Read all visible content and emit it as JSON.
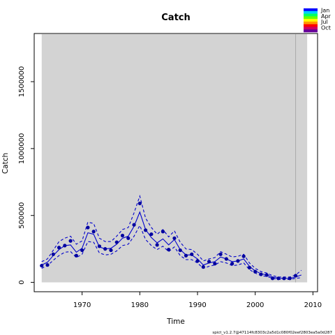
{
  "chart_data": {
    "type": "line",
    "title": "Catch",
    "xlabel": "Time",
    "ylabel": "Catch",
    "xlim": [
      1961.7,
      2010.8
    ],
    "ylim": [
      -70000,
      1860000
    ],
    "x_ticks": [
      1970,
      1980,
      1990,
      2000,
      2010
    ],
    "y_ticks": [
      0,
      500000,
      1000000,
      1500000
    ],
    "y_tick_labels": [
      "0",
      "500000",
      "1000000",
      "1500000"
    ],
    "shaded_region": {
      "x": [
        1963.0,
        2009.0
      ],
      "color": "#d3d3d3"
    },
    "reference_line_x": 2007,
    "legend": {
      "placement": "top-right",
      "labels": [
        "Jan",
        "Apr",
        "Jul",
        "Oct"
      ]
    },
    "observed": {
      "x": [
        1963,
        1964,
        1965,
        1966,
        1967,
        1968,
        1969,
        1970,
        1971,
        1972,
        1973,
        1974,
        1975,
        1976,
        1977,
        1978,
        1979,
        1980,
        1981,
        1982,
        1983,
        1984,
        1985,
        1986,
        1987,
        1988,
        1989,
        1990,
        1991,
        1992,
        1993,
        1994,
        1995,
        1996,
        1997,
        1998,
        1999,
        2000,
        2001,
        2002,
        2003,
        2004,
        2005,
        2006,
        2007
      ],
      "y": [
        125000,
        130000,
        210000,
        260000,
        275000,
        310000,
        200000,
        240000,
        410000,
        380000,
        270000,
        250000,
        240000,
        300000,
        350000,
        330000,
        430000,
        590000,
        390000,
        360000,
        280000,
        380000,
        245000,
        330000,
        240000,
        200000,
        210000,
        160000,
        115000,
        155000,
        140000,
        210000,
        175000,
        140000,
        160000,
        195000,
        110000,
        80000,
        60000,
        55000,
        30000,
        30000,
        30000,
        30000,
        50000
      ]
    },
    "series": [
      {
        "x": [
          1963,
          1964,
          1965,
          1966,
          1967,
          1968,
          1969,
          1970,
          1971,
          1972,
          1973,
          1974,
          1975,
          1976,
          1977,
          1978,
          1979,
          1980,
          1981,
          1982,
          1983,
          1984,
          1985,
          1986,
          1987,
          1988,
          1989,
          1990,
          1991,
          1992,
          1993,
          1994,
          1995,
          1996,
          1997,
          1998,
          1999,
          2000,
          2001,
          2002,
          2003,
          2004,
          2005,
          2006,
          2007,
          2008
        ],
        "y": [
          130000,
          150000,
          200000,
          245000,
          275000,
          280000,
          225000,
          255000,
          370000,
          360000,
          265000,
          250000,
          255000,
          285000,
          330000,
          345000,
          420000,
          525000,
          395000,
          335000,
          295000,
          325000,
          280000,
          320000,
          245000,
          205000,
          205000,
          175000,
          130000,
          145000,
          155000,
          190000,
          175000,
          155000,
          160000,
          175000,
          120000,
          85000,
          65000,
          55000,
          40000,
          30000,
          30000,
          30000,
          40000,
          55000
        ],
        "style": "solid"
      },
      {
        "x": [
          1963,
          1964,
          1965,
          1966,
          1967,
          1968,
          1969,
          1970,
          1971,
          1972,
          1973,
          1974,
          1975,
          1976,
          1977,
          1978,
          1979,
          1980,
          1981,
          1982,
          1983,
          1984,
          1985,
          1986,
          1987,
          1988,
          1989,
          1990,
          1991,
          1992,
          1993,
          1994,
          1995,
          1996,
          1997,
          1998,
          1999,
          2000,
          2001,
          2002,
          2003,
          2004,
          2005,
          2006,
          2007,
          2008
        ],
        "y": [
          155000,
          175000,
          240000,
          305000,
          330000,
          345000,
          285000,
          310000,
          450000,
          440000,
          330000,
          305000,
          305000,
          345000,
          395000,
          410000,
          520000,
          645000,
          480000,
          410000,
          360000,
          395000,
          340000,
          385000,
          300000,
          250000,
          245000,
          210000,
          160000,
          175000,
          185000,
          230000,
          210000,
          190000,
          195000,
          210000,
          145000,
          105000,
          80000,
          70000,
          50000,
          40000,
          40000,
          40000,
          55000,
          90000
        ],
        "style": "dashed"
      },
      {
        "x": [
          1963,
          1964,
          1965,
          1966,
          1967,
          1968,
          1969,
          1970,
          1971,
          1972,
          1973,
          1974,
          1975,
          1976,
          1977,
          1978,
          1979,
          1980,
          1981,
          1982,
          1983,
          1984,
          1985,
          1986,
          1987,
          1988,
          1989,
          1990,
          1991,
          1992,
          1993,
          1994,
          1995,
          1996,
          1997,
          1998,
          1999,
          2000,
          2001,
          2002,
          2003,
          2004,
          2005,
          2006,
          2007,
          2008
        ],
        "y": [
          105000,
          125000,
          165000,
          200000,
          225000,
          230000,
          185000,
          210000,
          305000,
          300000,
          220000,
          205000,
          210000,
          235000,
          275000,
          285000,
          345000,
          425000,
          320000,
          275000,
          245000,
          270000,
          230000,
          265000,
          200000,
          170000,
          170000,
          145000,
          105000,
          120000,
          130000,
          155000,
          145000,
          125000,
          130000,
          145000,
          95000,
          70000,
          50000,
          45000,
          30000,
          22000,
          22000,
          22000,
          30000,
          35000
        ],
        "style": "dashed"
      }
    ],
    "colors": {
      "line": "#0000cc",
      "points": "#0000a0",
      "shade": "#d3d3d3",
      "reference_line": "#aaaaaa",
      "legend_gradient": [
        "#0000ff",
        "#00ccff",
        "#00ff66",
        "#66ff00",
        "#ffff00",
        "#ff9900",
        "#ff0000",
        "#cc0066",
        "#660099"
      ]
    }
  },
  "footer": "spict_v1.2.7@47114fc8303c2a5d1c080f02eef2803ea5a0d287"
}
